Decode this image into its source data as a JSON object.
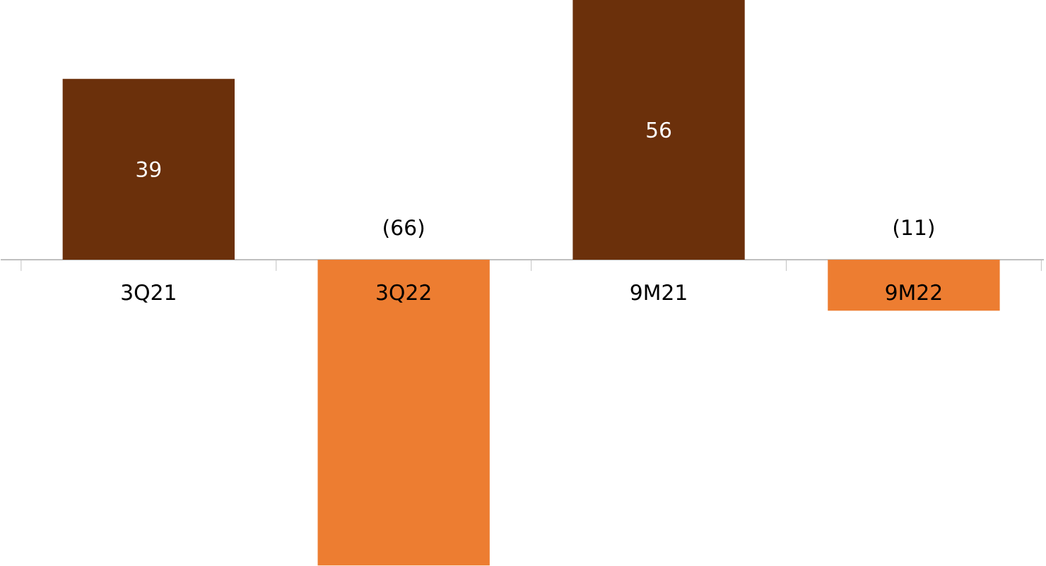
{
  "chart_data": {
    "type": "bar",
    "categories": [
      "3Q21",
      "3Q22",
      "9M21",
      "9M22"
    ],
    "values": [
      39,
      -66,
      56,
      -11
    ],
    "colors": [
      "#6b300b",
      "#ed7d31",
      "#6b300b",
      "#ed7d31"
    ],
    "value_labels": [
      "39",
      "(66)",
      "56",
      "(11)"
    ]
  }
}
